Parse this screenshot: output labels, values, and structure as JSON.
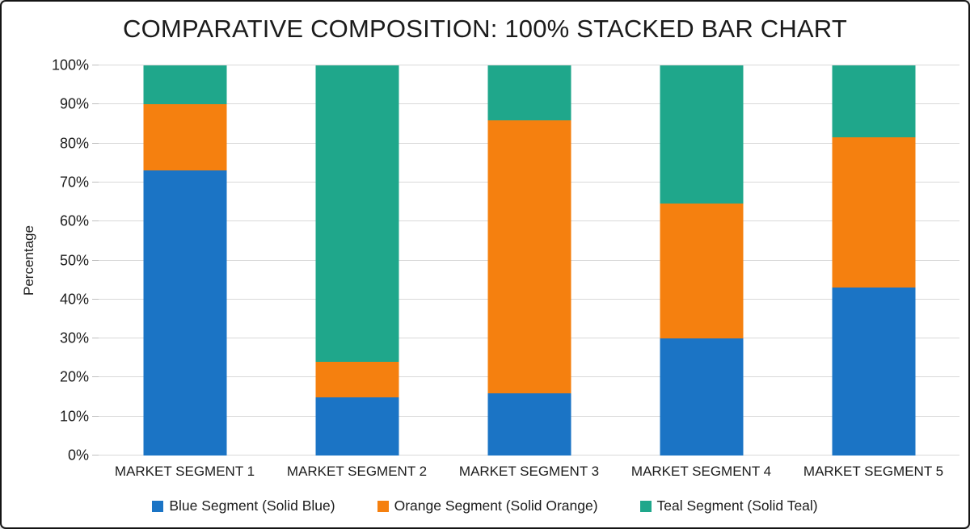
{
  "chart_data": {
    "type": "bar",
    "variant": "100-percent-stacked",
    "title": "COMPARATIVE COMPOSITION: 100% STACKED BAR CHART",
    "ylabel": "Percentage",
    "xlabel": "",
    "ylim": [
      0,
      100
    ],
    "grid": true,
    "legend_position": "bottom",
    "y_ticks": [
      "0%",
      "10%",
      "20%",
      "30%",
      "40%",
      "50%",
      "60%",
      "70%",
      "80%",
      "90%",
      "100%"
    ],
    "categories": [
      "MARKET SEGMENT 1",
      "MARKET SEGMENT 2",
      "MARKET SEGMENT 3",
      "MARKET SEGMENT 4",
      "MARKET SEGMENT 5"
    ],
    "series": [
      {
        "name": "Blue Segment (Solid Blue)",
        "color": "#1B74C5",
        "values": [
          73,
          15,
          16,
          30,
          43
        ]
      },
      {
        "name": "Orange Segment (Solid Orange)",
        "color": "#F5800F",
        "values": [
          17,
          9,
          70,
          34.5,
          38.5
        ]
      },
      {
        "name": "Teal Segment (Solid Teal)",
        "color": "#1FA78B",
        "values": [
          10,
          76,
          14,
          35.5,
          18.5
        ]
      }
    ]
  },
  "colors": {
    "background": "#ffffff",
    "frame_border": "#141414",
    "gridline": "#d9d9d9",
    "tick_mark": "#bfbfbf",
    "text": "#1c1c1c"
  }
}
